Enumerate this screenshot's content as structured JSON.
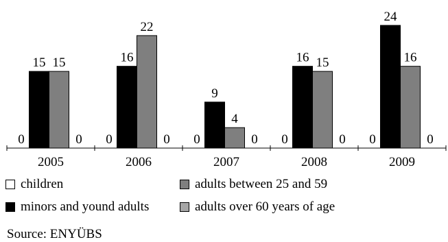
{
  "chart_data": {
    "type": "bar",
    "categories": [
      "2005",
      "2006",
      "2007",
      "2008",
      "2009"
    ],
    "series": [
      {
        "name": "children",
        "color": "#ffffff",
        "values": [
          0,
          0,
          0,
          0,
          0
        ]
      },
      {
        "name": "minors and yound adults",
        "color": "#000000",
        "values": [
          15,
          16,
          9,
          16,
          24
        ]
      },
      {
        "name": "adults between 25 and 59",
        "color": "#7f7f7f",
        "values": [
          15,
          22,
          4,
          15,
          16
        ]
      },
      {
        "name": "adults over 60 years of age",
        "color": "#a6a6a6",
        "values": [
          0,
          0,
          0,
          0,
          0
        ]
      }
    ],
    "data_labels": [
      [
        "0",
        "15",
        "15",
        "0"
      ],
      [
        "0",
        "16",
        "22",
        "0"
      ],
      [
        "0",
        "9",
        "4",
        "0"
      ],
      [
        "0",
        "16",
        "15",
        "0"
      ],
      [
        "0",
        "24",
        "16",
        "0"
      ]
    ],
    "ylim": [
      0,
      24
    ],
    "grid": false,
    "legend_position": "bottom"
  },
  "legend": {
    "children": "children",
    "minors": "minors and yound adults",
    "adults_25_59": "adults between 25 and 59",
    "adults_60": "adults over 60 years of age"
  },
  "source": "Source: ENYÜBS"
}
